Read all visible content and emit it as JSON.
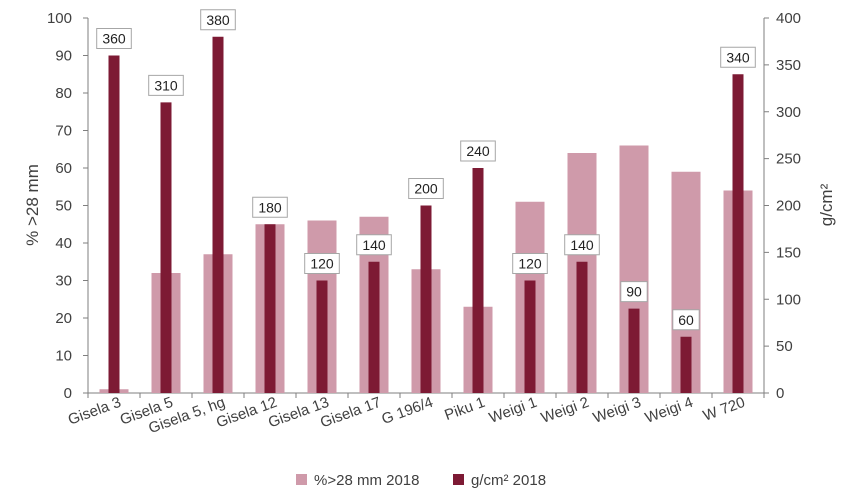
{
  "chart_data": {
    "type": "bar",
    "categories": [
      "Gisela 3",
      "Gisela 5",
      "Gisela 5, hg",
      "Gisela 12",
      "Gisela 13",
      "Gisela 17",
      "G 196/4",
      "Piku 1",
      "Weigi 1",
      "Weigi 2",
      "Weigi 3",
      "Weigi 4",
      "W 720"
    ],
    "series": [
      {
        "name": "%>28 mm 2018",
        "axis": "left",
        "color": "#cf9aaa",
        "values": [
          1,
          32,
          37,
          45,
          46,
          47,
          33,
          23,
          51,
          64,
          66,
          59,
          54
        ]
      },
      {
        "name": "g/cm² 2018",
        "axis": "right",
        "color": "#7d1a34",
        "values": [
          360,
          310,
          380,
          180,
          120,
          140,
          200,
          240,
          120,
          140,
          90,
          60,
          340
        ],
        "data_labels": [
          "360",
          "310",
          "380",
          "180",
          "120",
          "140",
          "200",
          "240",
          "120",
          "140",
          "90",
          "60",
          "340"
        ]
      }
    ],
    "ylabel_left": "% >28 mm",
    "ylabel_right": "g/cm²",
    "ylim_left": [
      0,
      100
    ],
    "ylim_right": [
      0,
      400
    ],
    "yticks_left": [
      "0",
      "10",
      "20",
      "30",
      "40",
      "50",
      "60",
      "70",
      "80",
      "90",
      "100"
    ],
    "yticks_right": [
      "0",
      "50",
      "100",
      "150",
      "200",
      "250",
      "300",
      "350",
      "400"
    ],
    "grid": false,
    "legend_position": "bottom"
  }
}
